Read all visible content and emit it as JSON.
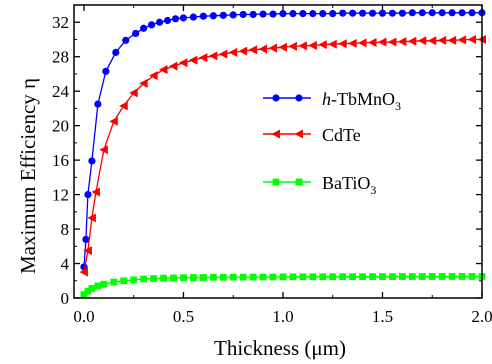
{
  "chart_data": {
    "type": "line",
    "xlabel": "Thickness (μm)",
    "ylabel": "Maximum Efficiency η",
    "xlim": [
      -0.05,
      2.0
    ],
    "ylim": [
      0,
      34
    ],
    "xticks": [
      0.0,
      0.5,
      1.0,
      1.5,
      2.0
    ],
    "xtick_labels": [
      "0.0",
      "0.5",
      "1.0",
      "1.5",
      "2.0"
    ],
    "yticks": [
      0,
      4,
      8,
      12,
      16,
      20,
      24,
      28,
      32
    ],
    "ytick_labels": [
      "0",
      "4",
      "8",
      "12",
      "16",
      "20",
      "24",
      "28",
      "32"
    ],
    "grid": false,
    "legend_position": "right-middle",
    "series": [
      {
        "name": "h-TbMnO3",
        "legend": {
          "italic": "h",
          "main": "-TbMnO",
          "sub": "3"
        },
        "color": "#0000ff",
        "marker": "circle",
        "x": [
          0.0,
          0.01,
          0.02,
          0.04,
          0.07,
          0.11,
          0.16,
          0.21,
          0.26,
          0.3,
          0.34,
          0.38,
          0.42,
          0.46,
          0.5,
          0.55,
          0.6,
          0.65,
          0.7,
          0.75,
          0.8,
          0.85,
          0.9,
          0.95,
          1.0,
          1.05,
          1.1,
          1.15,
          1.2,
          1.25,
          1.3,
          1.35,
          1.4,
          1.45,
          1.5,
          1.55,
          1.6,
          1.65,
          1.7,
          1.75,
          1.8,
          1.85,
          1.9,
          1.95,
          2.0
        ],
        "y": [
          3.6,
          6.8,
          12.0,
          15.9,
          22.5,
          26.3,
          28.5,
          29.9,
          30.7,
          31.3,
          31.7,
          32.0,
          32.2,
          32.4,
          32.5,
          32.6,
          32.7,
          32.75,
          32.8,
          32.85,
          32.9,
          32.9,
          32.95,
          32.95,
          33.0,
          33.0,
          33.0,
          33.0,
          33.0,
          33.0,
          33.05,
          33.05,
          33.05,
          33.05,
          33.05,
          33.05,
          33.05,
          33.1,
          33.1,
          33.1,
          33.1,
          33.1,
          33.1,
          33.1,
          33.1
        ]
      },
      {
        "name": "CdTe",
        "legend": {
          "italic": "",
          "main": "CdTe",
          "sub": ""
        },
        "color": "#ff0000",
        "marker": "triangle-left",
        "x": [
          0.0,
          0.02,
          0.04,
          0.06,
          0.1,
          0.15,
          0.2,
          0.25,
          0.3,
          0.35,
          0.4,
          0.45,
          0.5,
          0.55,
          0.6,
          0.65,
          0.7,
          0.75,
          0.8,
          0.85,
          0.9,
          0.95,
          1.0,
          1.05,
          1.1,
          1.15,
          1.2,
          1.25,
          1.3,
          1.35,
          1.4,
          1.45,
          1.5,
          1.55,
          1.6,
          1.65,
          1.7,
          1.75,
          1.8,
          1.85,
          1.9,
          1.95,
          2.0
        ],
        "y": [
          3.0,
          5.5,
          9.3,
          12.3,
          17.2,
          20.5,
          22.3,
          23.8,
          24.9,
          25.8,
          26.5,
          26.9,
          27.3,
          27.6,
          27.9,
          28.1,
          28.3,
          28.5,
          28.65,
          28.8,
          28.9,
          29.0,
          29.1,
          29.2,
          29.25,
          29.3,
          29.4,
          29.45,
          29.5,
          29.55,
          29.6,
          29.65,
          29.7,
          29.7,
          29.75,
          29.8,
          29.85,
          29.85,
          29.9,
          29.9,
          29.95,
          30.0,
          30.0
        ]
      },
      {
        "name": "BaTiO3",
        "legend": {
          "italic": "",
          "main": "BaTiO",
          "sub": "3"
        },
        "color": "#00ff00",
        "marker": "square",
        "x": [
          0.0,
          0.02,
          0.04,
          0.07,
          0.1,
          0.15,
          0.2,
          0.25,
          0.3,
          0.35,
          0.4,
          0.45,
          0.5,
          0.55,
          0.6,
          0.65,
          0.7,
          0.75,
          0.8,
          0.85,
          0.9,
          0.95,
          1.0,
          1.05,
          1.1,
          1.15,
          1.2,
          1.25,
          1.3,
          1.35,
          1.4,
          1.45,
          1.5,
          1.55,
          1.6,
          1.65,
          1.7,
          1.75,
          1.8,
          1.85,
          1.9,
          1.95,
          2.0
        ],
        "y": [
          0.4,
          0.8,
          1.1,
          1.4,
          1.6,
          1.85,
          2.0,
          2.1,
          2.2,
          2.25,
          2.3,
          2.32,
          2.35,
          2.37,
          2.38,
          2.4,
          2.4,
          2.42,
          2.42,
          2.43,
          2.44,
          2.44,
          2.45,
          2.45,
          2.46,
          2.46,
          2.46,
          2.47,
          2.47,
          2.47,
          2.48,
          2.48,
          2.48,
          2.48,
          2.49,
          2.49,
          2.49,
          2.49,
          2.5,
          2.5,
          2.5,
          2.5,
          2.5
        ]
      }
    ]
  }
}
